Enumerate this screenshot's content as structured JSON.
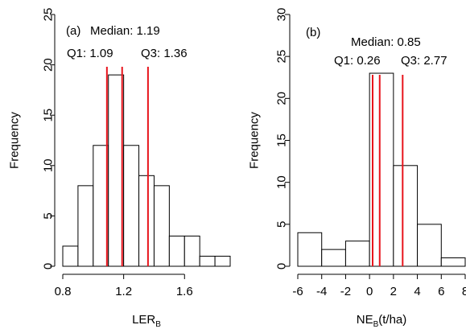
{
  "chart_data": [
    {
      "type": "bar",
      "panel_label": "(a)",
      "bin_edges": [
        0.8,
        0.9,
        1.0,
        1.1,
        1.2,
        1.3,
        1.4,
        1.5,
        1.6,
        1.7,
        1.8,
        1.9
      ],
      "values": [
        2,
        8,
        12,
        19,
        12,
        9,
        8,
        3,
        3,
        1,
        1
      ],
      "xlabel": "LER",
      "xlabel_sub": "B",
      "xlabel_suffix": "",
      "ylabel": "Frequency",
      "xlim": [
        0.8,
        1.9
      ],
      "ylim": [
        0,
        25
      ],
      "xticks": [
        0.8,
        1.2,
        1.6
      ],
      "xtick_labels": [
        "0.8",
        "1.2",
        "1.6"
      ],
      "yticks": [
        0,
        5,
        10,
        15,
        20,
        25
      ],
      "ytick_labels": [
        "0",
        "5",
        "10",
        "15",
        "20",
        "25"
      ],
      "grid": false,
      "line_color": "#e8141c",
      "median_text": "Median: 1.19",
      "q1_text": "Q1: 1.09",
      "q3_text": "Q3: 1.36",
      "vlines": [
        1.09,
        1.19,
        1.36
      ]
    },
    {
      "type": "bar",
      "panel_label": "(b)",
      "bin_edges": [
        -6,
        -4,
        -2,
        0,
        2,
        4,
        6,
        8
      ],
      "values": [
        4,
        2,
        3,
        23,
        12,
        5,
        1
      ],
      "xlabel": "NE",
      "xlabel_sub": "B",
      "xlabel_suffix": "(t/ha)",
      "ylabel": "Frequency",
      "xlim": [
        -6,
        8
      ],
      "ylim": [
        0,
        30
      ],
      "xticks": [
        -6,
        -4,
        -2,
        0,
        2,
        4,
        6,
        8
      ],
      "xtick_labels": [
        "-6",
        "-4",
        "-2",
        "0",
        "2",
        "4",
        "6",
        "8"
      ],
      "yticks": [
        0,
        5,
        10,
        15,
        20,
        25,
        30
      ],
      "ytick_labels": [
        "0",
        "5",
        "10",
        "15",
        "20",
        "25",
        "30"
      ],
      "grid": false,
      "line_color": "#e8141c",
      "median_text": "Median: 0.85",
      "q1_text": "Q1: 0.26",
      "q3_text": "Q3: 2.77",
      "vlines": [
        0.26,
        0.85,
        2.77
      ]
    }
  ]
}
